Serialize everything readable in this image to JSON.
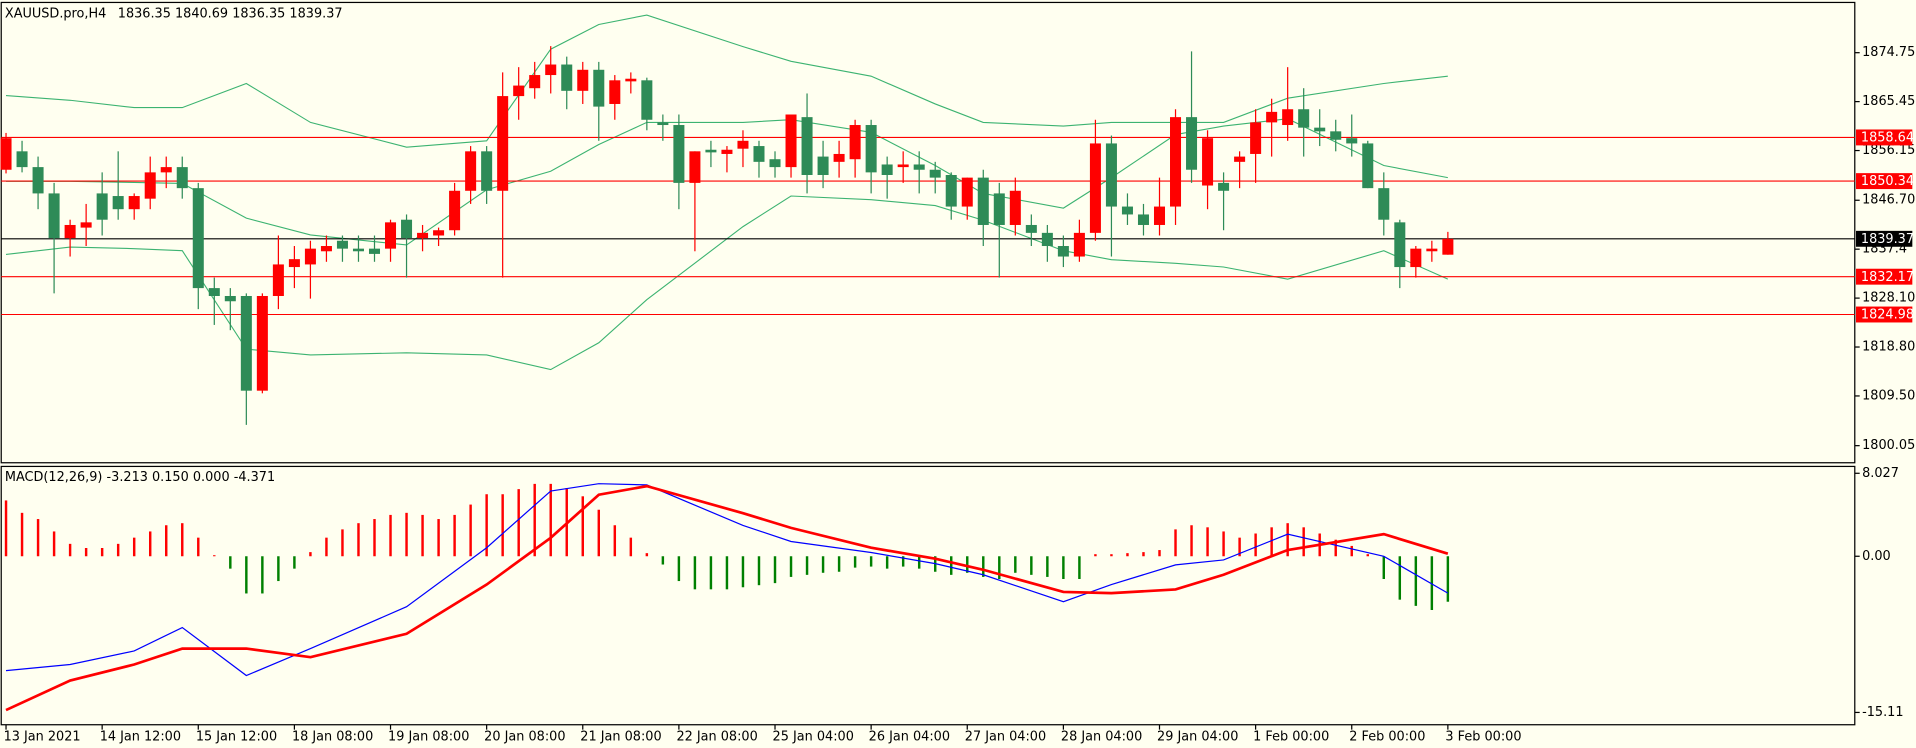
{
  "chart_data": [
    {
      "type": "candlestick",
      "title": "XAUUSD.pro,H4",
      "xlim": [
        -0.3,
        115.4
      ],
      "ylim": [
        1796.8,
        1884.3
      ],
      "yticks": [
        1874.75,
        1865.45,
        1856.15,
        {
          "value": 1846.7,
          "label": "1846.70"
        },
        1837.4,
        {
          "value": 1828.1,
          "label": "1828.10"
        },
        {
          "value": 1818.8,
          "label": "1818.80"
        },
        {
          "value": 1809.5,
          "label": "1809.50"
        },
        1800.05
      ],
      "up_color": "#ff0000",
      "down_color": "#2e8b57",
      "open": [
        1852.5,
        1856,
        1853,
        1848,
        1839.5,
        1841.5,
        1848,
        1847.5,
        1845,
        1847,
        1852,
        1853,
        1849,
        1830,
        1828.5,
        1828.5,
        1810.5,
        1828.5,
        1834,
        1834.5,
        1837,
        1839,
        1837.5,
        1837.5,
        1837.5,
        1843,
        1839.5,
        1840,
        1841,
        1848.5,
        1856,
        1848.5,
        1866.5,
        1868,
        1870.5,
        1872.5,
        1867.5,
        1871.5,
        1865,
        1869.3,
        1869.5,
        1861.5,
        1861,
        1850,
        1856.3,
        1855.5,
        1856.5,
        1857,
        1854.5,
        1853,
        1862.5,
        1855,
        1854,
        1854.5,
        1861,
        1853.5,
        1853,
        1853.5,
        1852.5,
        1851.5,
        1845.5,
        1851,
        1848,
        1842,
        1842,
        1840.5,
        1838,
        1836,
        1840.5,
        1857.5,
        1845.5,
        1844,
        1842,
        1845.5,
        1862.5,
        1849.5,
        1850,
        1854,
        1855.5,
        1861.5,
        1861,
        1864,
        1860.5,
        1859.8,
        1858.5,
        1857.5,
        1849,
        1842.5,
        1834,
        1837,
        1836.35
      ],
      "high": [
        1859.5,
        1858,
        1855,
        1850,
        1843,
        1846,
        1852,
        1856,
        1848,
        1855,
        1855,
        1855,
        1850,
        1832,
        1830,
        1829,
        1829,
        1840,
        1838,
        1839,
        1840,
        1840,
        1840,
        1840,
        1843,
        1844,
        1842,
        1841.5,
        1850,
        1857,
        1857,
        1871,
        1872,
        1873,
        1876,
        1874,
        1873,
        1873,
        1870.5,
        1871,
        1870,
        1863,
        1863,
        1856,
        1858,
        1857,
        1860,
        1858,
        1856,
        1863,
        1867,
        1858,
        1858,
        1862,
        1862,
        1855,
        1856,
        1856,
        1854,
        1852,
        1851,
        1852.5,
        1850,
        1851,
        1844,
        1842,
        1840,
        1843,
        1862,
        1859,
        1848,
        1846,
        1851,
        1864,
        1875,
        1860,
        1852,
        1856,
        1864,
        1866,
        1872,
        1868,
        1864,
        1862,
        1863,
        1858,
        1852,
        1843,
        1838,
        1839,
        1840.69
      ],
      "low": [
        1851.8,
        1852,
        1845,
        1829,
        1836,
        1838,
        1840,
        1843,
        1843,
        1845,
        1849,
        1847,
        1826,
        1823,
        1822,
        1804,
        1810,
        1826,
        1830,
        1828,
        1835,
        1835,
        1835,
        1835,
        1835,
        1832,
        1837,
        1838,
        1840,
        1846,
        1846,
        1832,
        1862,
        1866,
        1867,
        1864,
        1865,
        1858,
        1862,
        1867,
        1860,
        1858,
        1845,
        1837,
        1853,
        1852,
        1853,
        1851,
        1851,
        1851,
        1848,
        1849,
        1851,
        1851,
        1848,
        1847,
        1850,
        1848,
        1848,
        1843,
        1843,
        1838,
        1832,
        1840,
        1838,
        1835,
        1834,
        1835,
        1839,
        1836,
        1842,
        1840,
        1840,
        1842,
        1850,
        1845,
        1841,
        1849,
        1850,
        1855,
        1858,
        1855,
        1857,
        1856,
        1855,
        1849,
        1840,
        1830,
        1832,
        1835,
        1836.35
      ],
      "close": [
        1858.5,
        1853,
        1848,
        1839.5,
        1842,
        1842.5,
        1843,
        1845,
        1847.5,
        1852,
        1853,
        1849,
        1830,
        1828.5,
        1827.5,
        1810.5,
        1828.5,
        1834.5,
        1835.5,
        1837.5,
        1838,
        1837.5,
        1837,
        1836.5,
        1842.5,
        1839.5,
        1840.5,
        1841,
        1848.5,
        1856,
        1848.5,
        1866.5,
        1868.5,
        1870.5,
        1872.5,
        1867.5,
        1871.5,
        1864.5,
        1869.5,
        1869.8,
        1862,
        1861,
        1850,
        1856,
        1855.8,
        1856.3,
        1858,
        1854,
        1853,
        1863,
        1851.5,
        1851.5,
        1855.5,
        1861,
        1852,
        1851.5,
        1853.5,
        1852.5,
        1851,
        1845.5,
        1851,
        1842,
        1842,
        1848.5,
        1840.5,
        1838,
        1836,
        1840.5,
        1857.5,
        1845.5,
        1844,
        1842,
        1845.5,
        1862.5,
        1852.5,
        1858.5,
        1848.5,
        1855,
        1861.5,
        1863.5,
        1864,
        1860.5,
        1859.8,
        1858.2,
        1857.5,
        1849,
        1843,
        1834,
        1837.5,
        1837.5,
        1839.37
      ],
      "bands": {
        "color": "#3cb371",
        "x": [
          0,
          4,
          8,
          11,
          15,
          19,
          25,
          30,
          34,
          37,
          40,
          46,
          49,
          54,
          58,
          61,
          66,
          69,
          73,
          76,
          80,
          86,
          90
        ],
        "upper": [
          1866.6,
          1865.7,
          1864.3,
          1864.3,
          1868.9,
          1861.5,
          1856.8,
          1858.0,
          1875.4,
          1880.1,
          1881.9,
          1875.9,
          1873.1,
          1870.3,
          1865.0,
          1861.5,
          1860.8,
          1861.5,
          1861.5,
          1861.5,
          1866.1,
          1868.9,
          1870.3
        ],
        "middle": [
          1850.3,
          1850.3,
          1850.1,
          1849.9,
          1843.3,
          1840.1,
          1838.2,
          1848.7,
          1852.2,
          1857.3,
          1861.5,
          1861.5,
          1862.0,
          1859.6,
          1853.3,
          1848.0,
          1845.2,
          1851.0,
          1859.2,
          1860.8,
          1862.2,
          1853.3,
          1851.0
        ],
        "lower": [
          1836.4,
          1837.8,
          1837.5,
          1837.1,
          1818.4,
          1817.3,
          1817.7,
          1817.3,
          1814.5,
          1819.6,
          1827.8,
          1841.7,
          1847.5,
          1846.8,
          1845.7,
          1842.9,
          1837.1,
          1835.4,
          1834.7,
          1834.0,
          1831.7,
          1837.1,
          1831.7
        ]
      },
      "hlines": [
        {
          "value": 1858.64,
          "color": "#ff0000"
        },
        {
          "value": 1850.34,
          "color": "#ff0000"
        },
        {
          "value": 1832.17,
          "color": "#ff0000"
        },
        {
          "value": 1824.98,
          "color": "#ff0000"
        },
        {
          "value": 1839.37,
          "color": "#000000"
        }
      ]
    },
    {
      "type": "macd",
      "title": "MACD(12,26,9) -3.213 0.150 0.000 -4.371",
      "xlim": [
        -0.3,
        115.4
      ],
      "ylim": [
        -16.3,
        8.69
      ],
      "yticks": [
        8.027,
        {
          "value": 0,
          "label": "0.00"
        },
        -15.11
      ],
      "xticks": [
        {
          "value": 0,
          "label": "13 Jan 2021"
        },
        {
          "value": 6,
          "label": "14 Jan 12:00"
        },
        {
          "value": 12,
          "label": "15 Jan 12:00"
        },
        {
          "value": 18,
          "label": "18 Jan 08:00"
        },
        {
          "value": 24,
          "label": "19 Jan 08:00"
        },
        {
          "value": 30,
          "label": "20 Jan 08:00"
        },
        {
          "value": 36,
          "label": "21 Jan 08:00"
        },
        {
          "value": 42,
          "label": "22 Jan 08:00"
        },
        {
          "value": 48,
          "label": "25 Jan 04:00"
        },
        {
          "value": 54,
          "label": "26 Jan 04:00"
        },
        {
          "value": 60,
          "label": "27 Jan 04:00"
        },
        {
          "value": 66,
          "label": "28 Jan 04:00"
        },
        {
          "value": 72,
          "label": "29 Jan 04:00"
        },
        {
          "value": 78,
          "label": "1 Feb 00:00"
        },
        {
          "value": 84,
          "label": "2 Feb 00:00"
        },
        {
          "value": 90,
          "label": "3 Feb 00:00"
        }
      ],
      "up_color": "#ff0000",
      "down_color": "#008000",
      "histogram": [
        5.4,
        4.2,
        3.6,
        2.4,
        1.2,
        0.8,
        0.8,
        1.2,
        1.8,
        2.4,
        3.0,
        3.2,
        1.8,
        0.1,
        -1.2,
        -3.6,
        -3.6,
        -2.4,
        -1.2,
        0.4,
        1.8,
        2.6,
        3.2,
        3.6,
        4.0,
        4.2,
        4.0,
        3.6,
        4.0,
        5.0,
        6.0,
        6.0,
        6.5,
        7.0,
        7.0,
        6.6,
        5.8,
        4.5,
        3.0,
        1.8,
        0.3,
        -0.8,
        -2.4,
        -3.2,
        -3.2,
        -3.2,
        -3.0,
        -2.8,
        -2.6,
        -2.0,
        -1.8,
        -1.6,
        -1.5,
        -1.1,
        -1.0,
        -1.2,
        -1.0,
        -1.2,
        -1.5,
        -1.8,
        -1.6,
        -2.0,
        -2.2,
        -1.6,
        -1.8,
        -2.0,
        -2.2,
        -2.2,
        0.2,
        0.2,
        0.3,
        0.4,
        0.6,
        2.6,
        3.0,
        2.8,
        2.4,
        1.8,
        2.2,
        2.8,
        3.2,
        2.8,
        2.2,
        1.6,
        1.0,
        0.2,
        -2.2,
        -4.2,
        -4.8,
        -5.2,
        -4.4
      ],
      "lines": [
        {
          "color": "#0000ff",
          "x": [
            0,
            4,
            8,
            11,
            15,
            19,
            25,
            30,
            34,
            37,
            40,
            46,
            49,
            54,
            58,
            61,
            66,
            69,
            73,
            76,
            80,
            86,
            90
          ],
          "values": [
            -11.07,
            -10.47,
            -9.16,
            -6.9,
            -11.54,
            -8.93,
            -4.88,
            0.83,
            6.31,
            7.02,
            6.9,
            2.98,
            1.43,
            0.36,
            -0.71,
            -1.79,
            -4.4,
            -2.74,
            -0.83,
            -0.36,
            2.14,
            0,
            -3.57
          ]
        },
        {
          "color": "#ff0000",
          "x": [
            0,
            4,
            8,
            11,
            15,
            19,
            25,
            30,
            34,
            37,
            40,
            46,
            49,
            54,
            58,
            61,
            66,
            69,
            73,
            76,
            80,
            86,
            90
          ],
          "values": [
            -14.88,
            -12.02,
            -10.47,
            -8.93,
            -8.93,
            -9.76,
            -7.5,
            -2.74,
            1.79,
            5.95,
            6.78,
            4.17,
            2.74,
            0.83,
            -0.24,
            -1.31,
            -3.45,
            -3.57,
            -3.21,
            -1.79,
            0.6,
            2.14,
            0.24
          ]
        }
      ]
    }
  ]
}
